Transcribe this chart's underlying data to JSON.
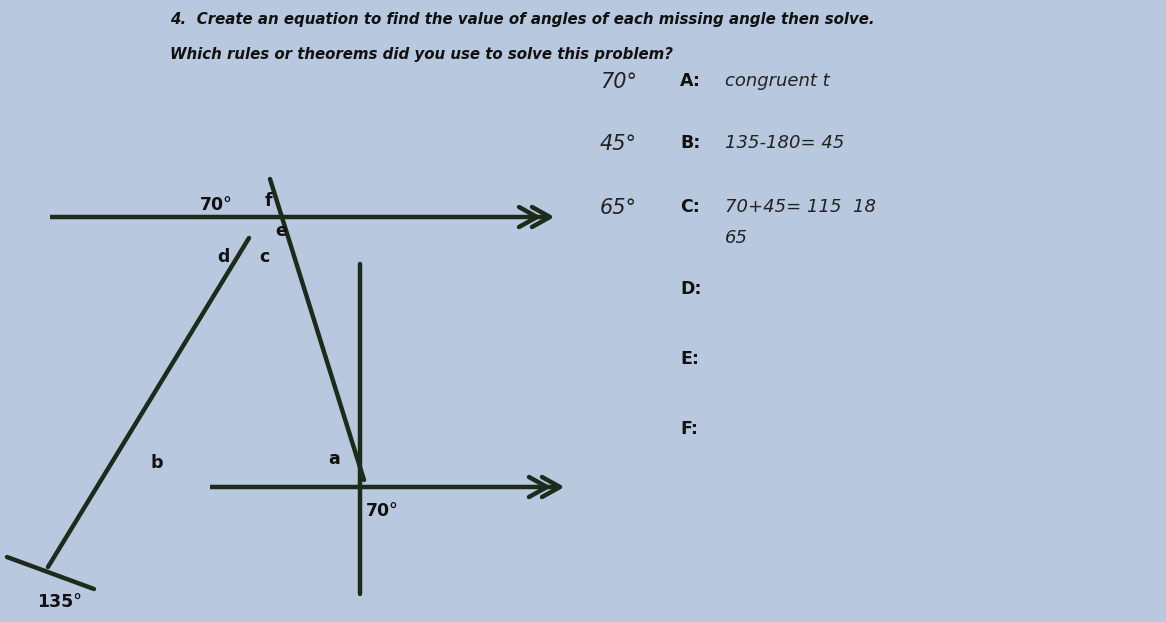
{
  "bg_color": "#b8c8de",
  "paper_color": "#cdd9ea",
  "title_line1": "4.  Create an equation to find the value of angles of each missing angle then solve.",
  "title_line2": "Which rules or theorems did you use to solve this problem?",
  "angle_70_top": "70°",
  "label_f": "f",
  "label_d": "d",
  "label_c": "c",
  "label_e": "e",
  "label_a": "a",
  "angle_70_bot": "70°",
  "label_b": "b",
  "angle_135": "135°",
  "A_label": "A:",
  "A_hw_prefix": "70°",
  "A_hw_answer": "congruent t",
  "B_label": "B:",
  "B_hw_prefix": "45°",
  "B_hw_answer": "135-180= 45",
  "C_label": "C:",
  "C_hw_prefix": "65°",
  "C_hw_answer": "70+45= 115  18",
  "C_hw_sub": "65",
  "D_label": "D:",
  "E_label": "E:",
  "F_label": "F:",
  "line_color": "#1c2b1c",
  "text_color": "#111111",
  "hw_color": "#222222"
}
